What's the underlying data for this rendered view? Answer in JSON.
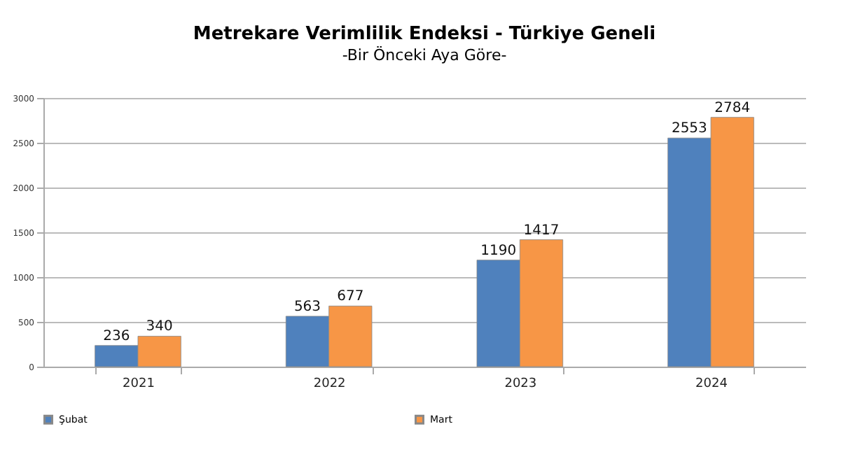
{
  "chart_data": {
    "type": "bar",
    "title": "Metrekare Verimlilik Endeksi - Türkiye Geneli",
    "subtitle": "-Bir Önceki Aya Göre-",
    "categories": [
      "2021",
      "2022",
      "2023",
      "2024"
    ],
    "series": [
      {
        "name": "Şubat",
        "color": "#4f81bd",
        "values": [
          236,
          563,
          1190,
          2553
        ]
      },
      {
        "name": "Mart",
        "color": "#f79646",
        "values": [
          340,
          677,
          1417,
          2784
        ]
      }
    ],
    "ylim": [
      0,
      3000
    ],
    "yticks": [
      0,
      500,
      1000,
      1500,
      2000,
      2500,
      3000
    ],
    "grid": "y",
    "legend": "bottom",
    "data_labels": true
  }
}
